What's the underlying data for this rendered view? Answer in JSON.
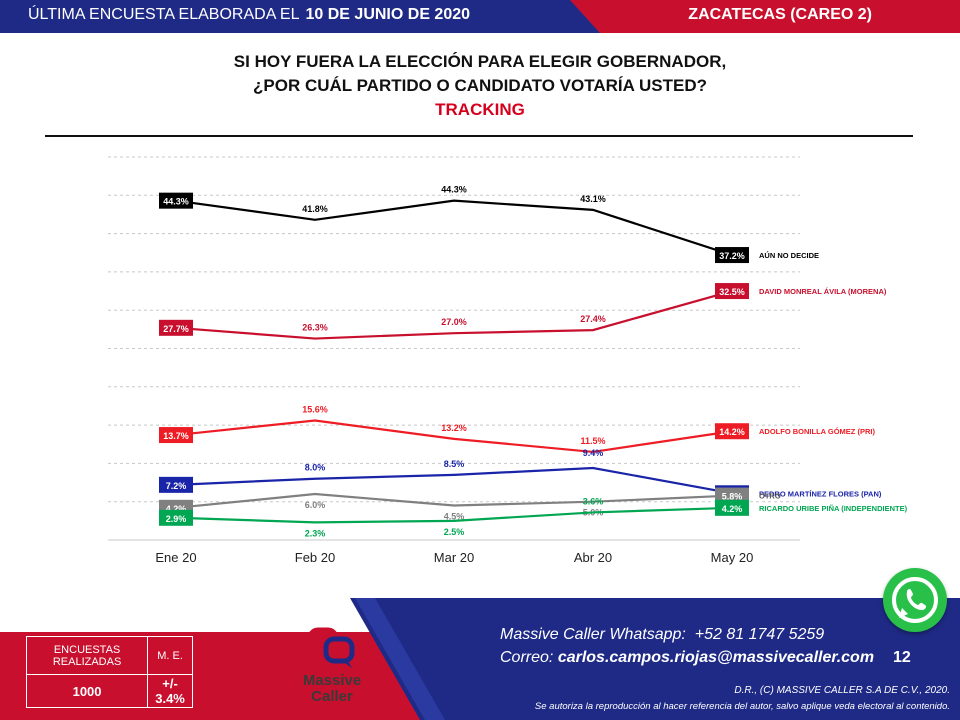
{
  "header": {
    "left_prefix": "ÚLTIMA ENCUESTA ELABORADA EL",
    "left_date": "10 DE JUNIO DE 2020",
    "right": "ZACATECAS (CAREO 2)"
  },
  "title": {
    "line1": "SI HOY FUERA LA ELECCIÓN PARA ELEGIR GOBERNADOR,",
    "line2": "¿POR CUÁL PARTIDO O CANDIDATO VOTARÍA USTED?",
    "line3": "TRACKING"
  },
  "chart_data": {
    "type": "line",
    "x": [
      "Ene 20",
      "Feb 20",
      "Mar 20",
      "Abr 20",
      "May 20"
    ],
    "ylim": [
      0,
      50
    ],
    "grid": true,
    "legend": "right-end labels",
    "series": [
      {
        "name": "AÚN NO DECIDE",
        "color": "#000000",
        "values": [
          44.3,
          41.8,
          44.3,
          43.1,
          37.2
        ],
        "labels": [
          "44.3%",
          "41.8%",
          "44.3%",
          "43.1%",
          "37.2%"
        ]
      },
      {
        "name": "DAVID MONREAL ÁVILA (MORENA)",
        "color": "#c8102e",
        "values": [
          27.7,
          26.3,
          27.0,
          27.4,
          32.5
        ],
        "labels": [
          "27.7%",
          "26.3%",
          "27.0%",
          "27.4%",
          "32.5%"
        ]
      },
      {
        "name": "ADOLFO BONILLA GÓMEZ (PRI)",
        "color": "#ee1c24",
        "values": [
          13.7,
          15.6,
          13.2,
          11.5,
          14.2
        ],
        "labels": [
          "13.7%",
          "15.6%",
          "13.2%",
          "11.5%",
          "14.2%"
        ]
      },
      {
        "name": "PEDRO MARTÍNEZ FLORES (PAN)",
        "color": "#1a24a8",
        "values": [
          7.2,
          8.0,
          8.5,
          9.4,
          6.1
        ],
        "labels": [
          "7.2%",
          "8.0%",
          "8.5%",
          "9.4%",
          "6.1%"
        ]
      },
      {
        "name": "OTRO",
        "color": "#808080",
        "values": [
          4.2,
          6.0,
          4.5,
          5.0,
          5.8
        ],
        "labels": [
          "4.2%",
          "6.0%",
          "4.5%",
          "5.0%",
          "5.8%"
        ]
      },
      {
        "name": "RICARDO URIBE PIÑA (INDEPENDIENTE)",
        "color": "#00a651",
        "values": [
          2.9,
          2.3,
          2.5,
          3.6,
          4.2
        ],
        "labels": [
          "2.9%",
          "2.3%",
          "2.5%",
          "3.6%",
          "4.2%"
        ]
      }
    ]
  },
  "footer": {
    "whatsapp_label": "Massive Caller Whatsapp:",
    "whatsapp_number": "+52 81 1747 5259",
    "email_label": "Correo:",
    "email": "carlos.campos.riojas@massivecaller.com",
    "page": "12",
    "copyright": "D.R., (C) MASSIVE CALLER S.A DE C.V., 2020.",
    "notice": "Se autoriza la reproducción al hacer referencia del autor, salvo aplique veda electoral al contenido.",
    "logo_line1": "Massive",
    "logo_line2": "Caller",
    "box": {
      "h1": "ENCUESTAS REALIZADAS",
      "h2": "M. E.",
      "v1": "1000",
      "v2": "+/- 3.4%"
    }
  },
  "colors": {
    "navy": "#1f2a86",
    "red": "#c8102e",
    "whatsapp": "#29c04a"
  },
  "icons": {
    "whatsapp": "whatsapp-icon",
    "logo": "massive-caller-logo"
  }
}
